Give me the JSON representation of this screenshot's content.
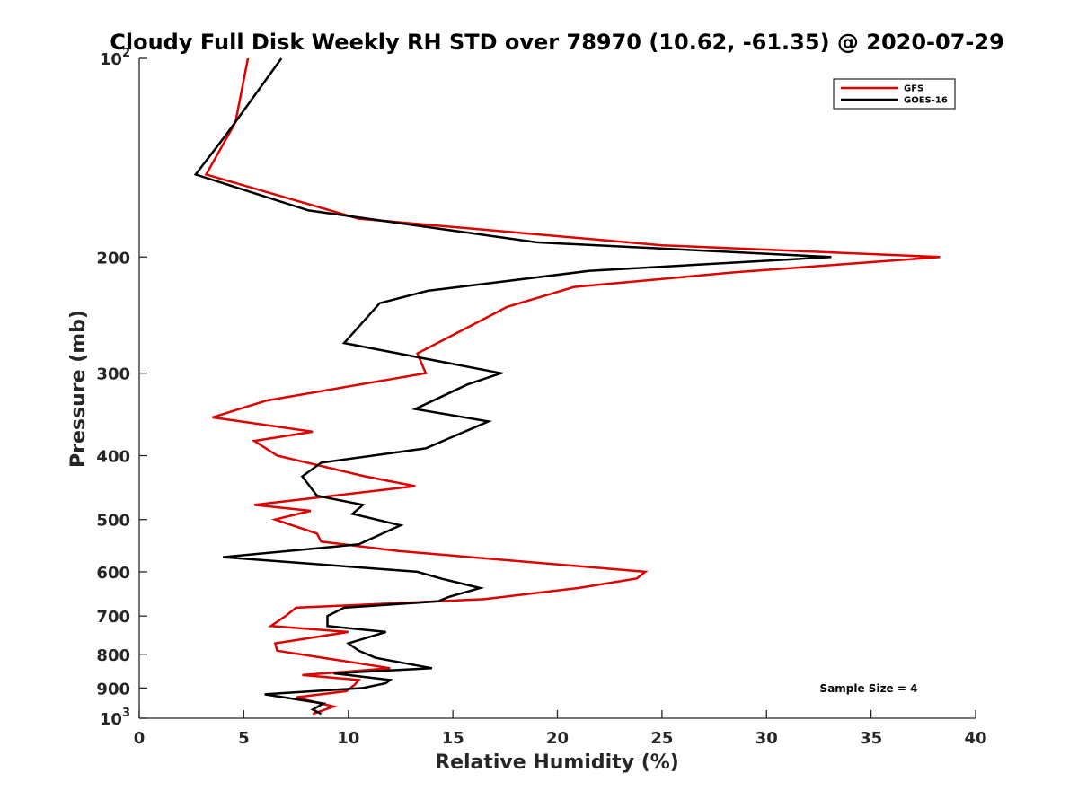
{
  "chart_data": {
    "type": "line",
    "title": "Cloudy Full Disk Weekly RH STD over 78970 (10.62, -61.35) @ 2020-07-29",
    "xlabel": "Relative Humidity (%)",
    "ylabel": "Pressure (mb)",
    "xlim": [
      0,
      40
    ],
    "ylim": [
      100,
      1000
    ],
    "y_scale": "log",
    "y_reversed": true,
    "grid": false,
    "legend_position": "top-right",
    "x_ticks": [
      "0",
      "5",
      "10",
      "15",
      "20",
      "25",
      "30",
      "35",
      "40"
    ],
    "y_ticks": [
      {
        "value": 100,
        "base": "10",
        "exp": "2"
      },
      {
        "value": 200,
        "label": "200"
      },
      {
        "value": 300,
        "label": "300"
      },
      {
        "value": 400,
        "label": "400"
      },
      {
        "value": 500,
        "label": "500"
      },
      {
        "value": 600,
        "label": "600"
      },
      {
        "value": 700,
        "label": "700"
      },
      {
        "value": 800,
        "label": "800"
      },
      {
        "value": 900,
        "label": "900"
      },
      {
        "value": 1000,
        "base": "10",
        "exp": "3"
      }
    ],
    "annotation": "Sample Size = 4",
    "series": [
      {
        "name": "GFS",
        "color": "#e00000",
        "points": [
          [
            5.2,
            100
          ],
          [
            4.6,
            125
          ],
          [
            3.2,
            150
          ],
          [
            10.5,
            175
          ],
          [
            25.0,
            192
          ],
          [
            38.3,
            200
          ],
          [
            28.5,
            211
          ],
          [
            20.8,
            222
          ],
          [
            17.6,
            238
          ],
          [
            13.3,
            280
          ],
          [
            13.7,
            300
          ],
          [
            6.1,
            330
          ],
          [
            3.5,
            350
          ],
          [
            8.3,
            368
          ],
          [
            5.5,
            380
          ],
          [
            6.6,
            400
          ],
          [
            10.8,
            430
          ],
          [
            13.2,
            445
          ],
          [
            5.5,
            475
          ],
          [
            8.2,
            485
          ],
          [
            6.5,
            500
          ],
          [
            8.5,
            525
          ],
          [
            8.7,
            540
          ],
          [
            12.4,
            558
          ],
          [
            24.2,
            600
          ],
          [
            23.8,
            614
          ],
          [
            21.0,
            635
          ],
          [
            16.5,
            660
          ],
          [
            7.5,
            680
          ],
          [
            7.0,
            700
          ],
          [
            6.3,
            725
          ],
          [
            10.0,
            740
          ],
          [
            6.5,
            770
          ],
          [
            6.6,
            790
          ],
          [
            12.0,
            840
          ],
          [
            7.8,
            860
          ],
          [
            10.5,
            875
          ],
          [
            10.3,
            890
          ],
          [
            9.9,
            910
          ],
          [
            7.5,
            930
          ],
          [
            9.3,
            960
          ],
          [
            8.3,
            985
          ]
        ]
      },
      {
        "name": "GOES-16",
        "color": "#000000",
        "points": [
          [
            6.8,
            100
          ],
          [
            4.2,
            130
          ],
          [
            2.7,
            150
          ],
          [
            8.1,
            170
          ],
          [
            19.0,
            190
          ],
          [
            33.1,
            200
          ],
          [
            21.5,
            210
          ],
          [
            13.8,
            225
          ],
          [
            11.5,
            235
          ],
          [
            9.8,
            270
          ],
          [
            17.3,
            300
          ],
          [
            15.7,
            312
          ],
          [
            13.2,
            340
          ],
          [
            16.7,
            355
          ],
          [
            13.7,
            390
          ],
          [
            8.7,
            410
          ],
          [
            7.8,
            430
          ],
          [
            8.5,
            460
          ],
          [
            10.7,
            475
          ],
          [
            10.2,
            490
          ],
          [
            12.5,
            510
          ],
          [
            10.5,
            545
          ],
          [
            4.0,
            570
          ],
          [
            13.3,
            600
          ],
          [
            14.5,
            615
          ],
          [
            16.3,
            635
          ],
          [
            14.8,
            655
          ],
          [
            14.3,
            665
          ],
          [
            9.8,
            680
          ],
          [
            9.0,
            700
          ],
          [
            9.0,
            725
          ],
          [
            11.8,
            740
          ],
          [
            10.0,
            770
          ],
          [
            10.5,
            790
          ],
          [
            11.3,
            810
          ],
          [
            14.0,
            840
          ],
          [
            9.3,
            855
          ],
          [
            12.0,
            875
          ],
          [
            11.8,
            885
          ],
          [
            10.7,
            900
          ],
          [
            6.0,
            920
          ],
          [
            8.8,
            950
          ],
          [
            8.3,
            970
          ],
          [
            8.7,
            985
          ]
        ]
      }
    ]
  }
}
